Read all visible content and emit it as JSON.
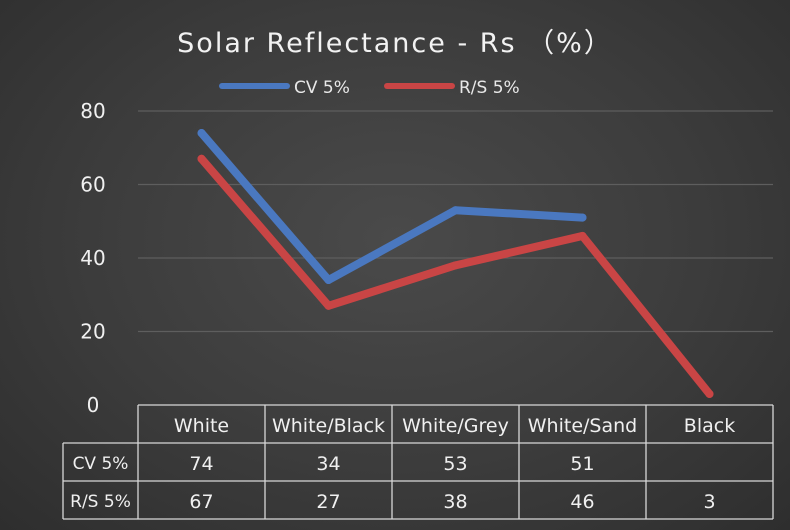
{
  "chart_data": {
    "type": "line",
    "title": "Solar Reflectance - Rs （%）",
    "categories": [
      "White",
      "White/Black",
      "White/Grey",
      "White/Sand",
      "Black"
    ],
    "series": [
      {
        "name": "CV 5%",
        "values": [
          74,
          34,
          53,
          51,
          null
        ],
        "color": "#4a78c0"
      },
      {
        "name": "R/S 5%",
        "values": [
          67,
          27,
          38,
          46,
          3
        ],
        "color": "#c94545"
      }
    ],
    "ylim": [
      0,
      80
    ],
    "yticks": [
      0,
      20,
      40,
      60,
      80
    ],
    "grid": true,
    "legend": "top",
    "data_table": true
  }
}
